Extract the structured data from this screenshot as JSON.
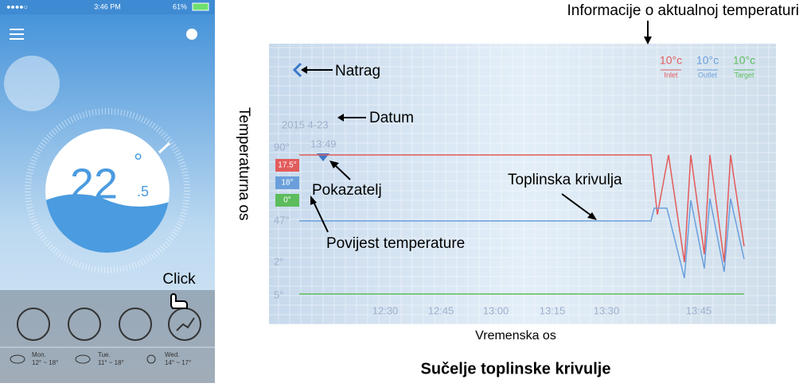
{
  "phone": {
    "status": {
      "signal": "●●●●○",
      "time": "3:46 PM",
      "battery": "61%"
    },
    "temperature": {
      "whole": "22",
      "degree": "°",
      "fraction": ".5"
    },
    "click_hint": "Click",
    "forecast": [
      {
        "day": "Mon.",
        "range": "12° ~ 18°"
      },
      {
        "day": "Tue.",
        "range": "11° ~ 18°"
      },
      {
        "day": "Wed.",
        "range": "14° ~ 17°"
      }
    ]
  },
  "screen": {
    "date": "2015 4-23",
    "cursor_time": "13:49",
    "readings": [
      {
        "value": "10°c",
        "label": "Inlet"
      },
      {
        "value": "10°c",
        "label": "Outlet"
      },
      {
        "value": "10°c",
        "label": "Target"
      }
    ],
    "badges": [
      "17.5°",
      "18°",
      "0°"
    ],
    "y_labels": [
      "90°",
      "47°",
      "2°",
      "5°"
    ],
    "x_labels": [
      "12:30",
      "12:45",
      "13:00",
      "13:15",
      "13:30",
      "13:45"
    ]
  },
  "annotations": {
    "current_info": "Informacije o aktualnoj temperaturi",
    "back": "Natrag",
    "date": "Datum",
    "indicator": "Pokazatelj",
    "history": "Povijest temperature",
    "curve": "Toplinska krivulja",
    "y_axis": "Temperaturna os",
    "x_axis": "Vremenska os"
  },
  "caption": "Sučelje toplinske krivulje"
}
